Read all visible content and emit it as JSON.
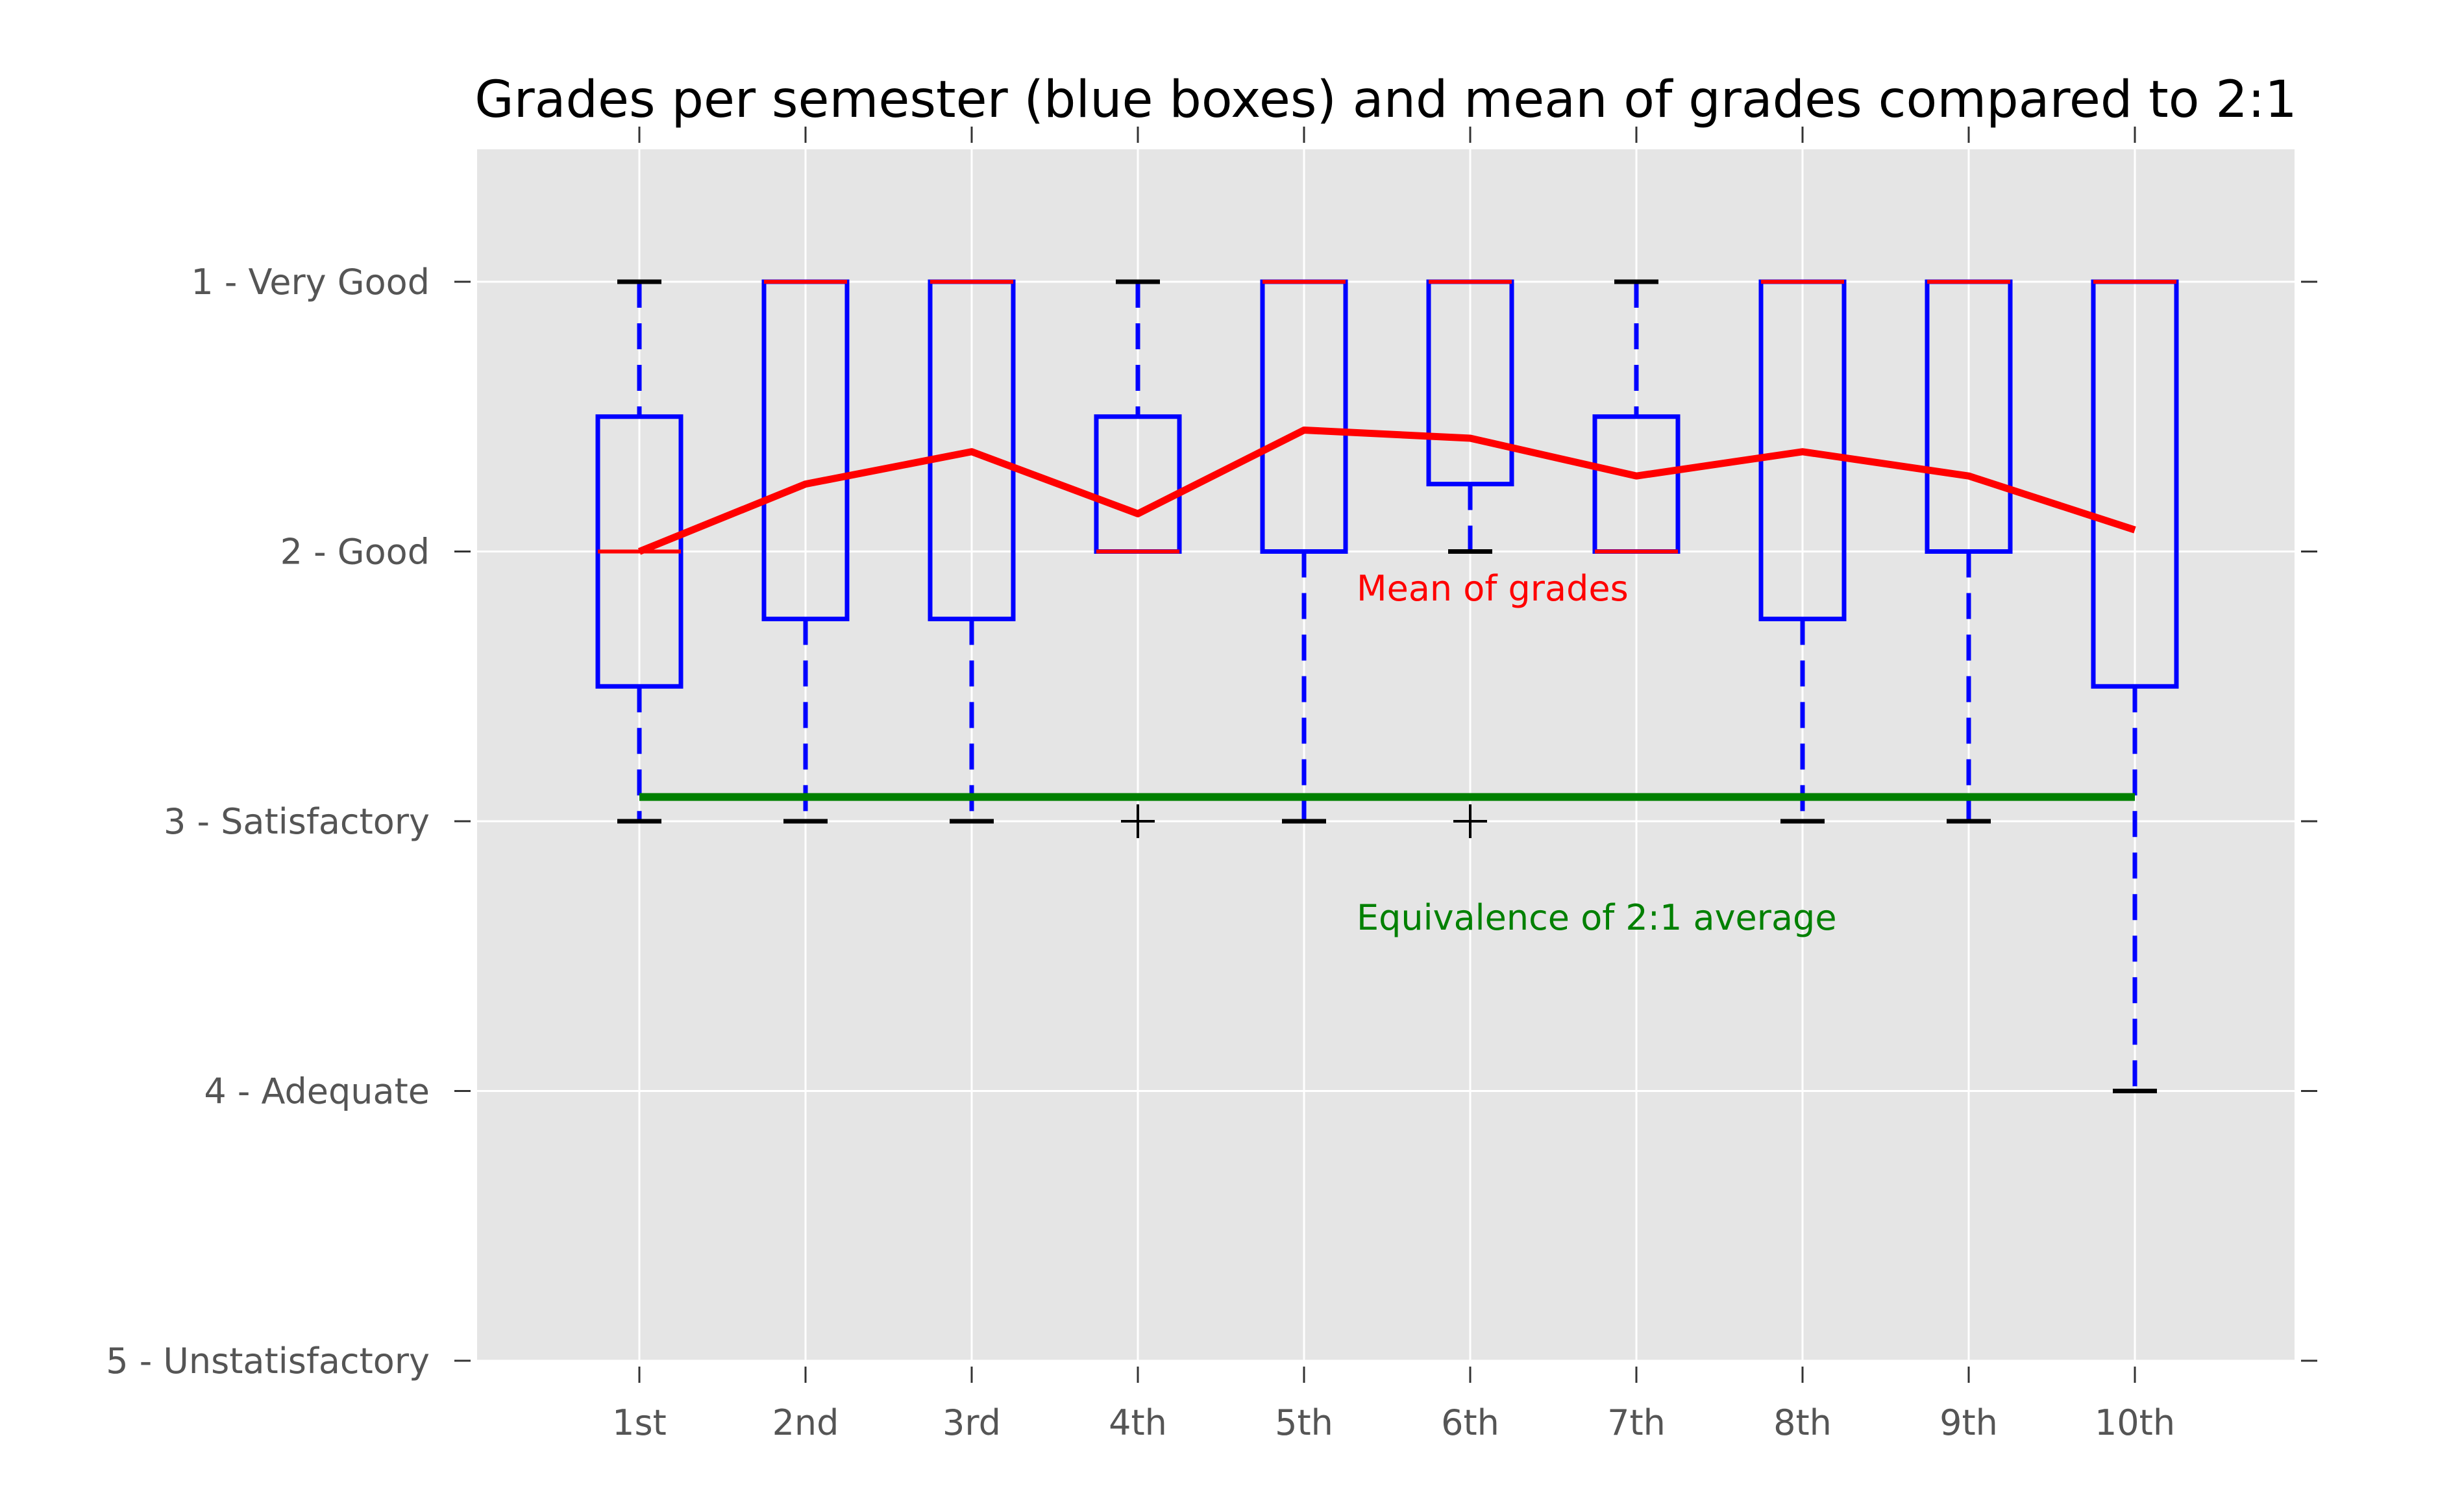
{
  "chart_data": {
    "type": "box",
    "title": "Grades per semester (blue boxes) and mean of grades compared to 2:1",
    "categories": [
      "1st",
      "2nd",
      "3rd",
      "4th",
      "5th",
      "6th",
      "7th",
      "8th",
      "9th",
      "10th"
    ],
    "y_ticks": [
      {
        "value": 1,
        "label": "1 - Very Good"
      },
      {
        "value": 2,
        "label": "2 - Good"
      },
      {
        "value": 3,
        "label": "3 - Satisfactory"
      },
      {
        "value": 4,
        "label": "4 - Adequate"
      },
      {
        "value": 5,
        "label": "5 - Unstatisfactory"
      }
    ],
    "ylim": [
      5,
      0.5
    ],
    "y_inverted": true,
    "grid": true,
    "boxes": [
      {
        "category": "1st",
        "whisker_low": 1.0,
        "q1": 1.5,
        "median": 2.0,
        "q3": 2.5,
        "whisker_high": 3.0,
        "fliers": []
      },
      {
        "category": "2nd",
        "whisker_low": 1.0,
        "q1": 1.0,
        "median": 1.0,
        "q3": 2.25,
        "whisker_high": 3.0,
        "fliers": []
      },
      {
        "category": "3rd",
        "whisker_low": 1.0,
        "q1": 1.0,
        "median": 1.0,
        "q3": 2.25,
        "whisker_high": 3.0,
        "fliers": []
      },
      {
        "category": "4th",
        "whisker_low": 1.0,
        "q1": 1.5,
        "median": 2.0,
        "q3": 2.0,
        "whisker_high": 2.0,
        "fliers": [
          3.0
        ]
      },
      {
        "category": "5th",
        "whisker_low": 1.0,
        "q1": 1.0,
        "median": 1.0,
        "q3": 2.0,
        "whisker_high": 3.0,
        "fliers": []
      },
      {
        "category": "6th",
        "whisker_low": 1.0,
        "q1": 1.0,
        "median": 1.0,
        "q3": 1.75,
        "whisker_high": 2.0,
        "fliers": [
          3.0
        ]
      },
      {
        "category": "7th",
        "whisker_low": 1.0,
        "q1": 1.5,
        "median": 2.0,
        "q3": 2.0,
        "whisker_high": 2.0,
        "fliers": []
      },
      {
        "category": "8th",
        "whisker_low": 1.0,
        "q1": 1.0,
        "median": 1.0,
        "q3": 2.25,
        "whisker_high": 3.0,
        "fliers": []
      },
      {
        "category": "9th",
        "whisker_low": 1.0,
        "q1": 1.0,
        "median": 1.0,
        "q3": 2.0,
        "whisker_high": 3.0,
        "fliers": []
      },
      {
        "category": "10th",
        "whisker_low": 1.0,
        "q1": 1.0,
        "median": 1.0,
        "q3": 2.5,
        "whisker_high": 4.0,
        "fliers": []
      }
    ],
    "means": [
      2.0,
      1.75,
      1.63,
      1.86,
      1.55,
      1.58,
      1.72,
      1.63,
      1.72,
      1.92
    ],
    "reference_line": {
      "value": 2.91,
      "from": "1st",
      "to": "10th"
    },
    "annotations": [
      {
        "text": "Mean of grades",
        "color": "#ff0000"
      },
      {
        "text": "Equivalence of 2:1 average",
        "color": "#008000"
      }
    ],
    "colors": {
      "box": "#0000ff",
      "mean": "#ff0000",
      "reference": "#008000",
      "caps": "#000000",
      "plot_bg": "#e5e5e5",
      "grid": "#ffffff"
    }
  }
}
